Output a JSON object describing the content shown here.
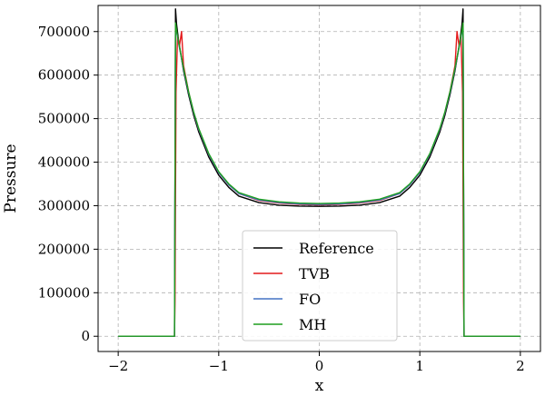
{
  "chart_data": {
    "type": "line",
    "title": "",
    "xlabel": "x",
    "ylabel": "Pressure",
    "xlim": [
      -2.2,
      2.2
    ],
    "ylim": [
      -35000,
      760000
    ],
    "xticks": [
      -2,
      -1,
      0,
      1,
      2
    ],
    "xtick_labels": [
      "−2",
      "−1",
      "0",
      "1",
      "2"
    ],
    "yticks": [
      0,
      100000,
      200000,
      300000,
      400000,
      500000,
      600000,
      700000
    ],
    "ytick_labels": [
      "0",
      "100000",
      "200000",
      "300000",
      "400000",
      "500000",
      "600000",
      "700000"
    ],
    "grid": true,
    "legend_position": "bottom-center",
    "series": [
      {
        "name": "Reference",
        "color": "#000000",
        "x": [
          -2.0,
          -1.44,
          -1.43,
          -1.42,
          -1.4,
          -1.35,
          -1.3,
          -1.25,
          -1.2,
          -1.1,
          -1.0,
          -0.9,
          -0.8,
          -0.6,
          -0.4,
          -0.2,
          0.0,
          0.2,
          0.4,
          0.6,
          0.8,
          0.9,
          1.0,
          1.1,
          1.2,
          1.25,
          1.3,
          1.35,
          1.4,
          1.42,
          1.43,
          1.44,
          2.0
        ],
        "y": [
          0,
          0,
          752000,
          718000,
          680000,
          610000,
          555000,
          508000,
          470000,
          412000,
          370000,
          342000,
          322000,
          307000,
          301000,
          299000,
          298500,
          299000,
          301000,
          307000,
          322000,
          342000,
          370000,
          412000,
          470000,
          508000,
          555000,
          610000,
          680000,
          718000,
          752000,
          0,
          0
        ]
      },
      {
        "name": "TVB",
        "color": "#e41a1c",
        "x": [
          -2.0,
          -1.44,
          -1.435,
          -1.425,
          -1.41,
          -1.39,
          -1.37,
          -1.35,
          -1.3,
          -1.25,
          -1.2,
          -1.1,
          -1.0,
          -0.9,
          -0.8,
          -0.6,
          -0.4,
          -0.2,
          0.0,
          0.2,
          0.4,
          0.6,
          0.8,
          0.9,
          1.0,
          1.1,
          1.2,
          1.25,
          1.3,
          1.35,
          1.37,
          1.39,
          1.41,
          1.425,
          1.435,
          1.44,
          2.0
        ],
        "y": [
          0,
          0,
          80000,
          560000,
          690000,
          668000,
          700000,
          622000,
          562000,
          514000,
          476000,
          418000,
          376000,
          348000,
          328000,
          312000,
          306000,
          303000,
          302000,
          303000,
          306000,
          312000,
          328000,
          348000,
          376000,
          418000,
          476000,
          514000,
          562000,
          622000,
          700000,
          668000,
          690000,
          560000,
          80000,
          0,
          0
        ]
      },
      {
        "name": "FO",
        "color": "#4472c4",
        "x": [
          -2.0,
          -1.44,
          -1.43,
          -1.42,
          -1.4,
          -1.35,
          -1.3,
          -1.25,
          -1.2,
          -1.1,
          -1.0,
          -0.9,
          -0.8,
          -0.6,
          -0.4,
          -0.2,
          0.0,
          0.2,
          0.4,
          0.6,
          0.8,
          0.9,
          1.0,
          1.1,
          1.2,
          1.25,
          1.3,
          1.35,
          1.4,
          1.42,
          1.43,
          1.44,
          2.0
        ],
        "y": [
          0,
          0,
          712000,
          700000,
          674000,
          614000,
          560000,
          514000,
          476000,
          418000,
          376000,
          348000,
          328000,
          313000,
          307000,
          304000,
          303000,
          304000,
          307000,
          313000,
          328000,
          348000,
          376000,
          418000,
          476000,
          514000,
          560000,
          614000,
          674000,
          700000,
          712000,
          0,
          0
        ]
      },
      {
        "name": "MH",
        "color": "#1f9e1f",
        "x": [
          -2.0,
          -1.44,
          -1.43,
          -1.42,
          -1.4,
          -1.35,
          -1.3,
          -1.25,
          -1.2,
          -1.1,
          -1.0,
          -0.9,
          -0.8,
          -0.6,
          -0.4,
          -0.2,
          0.0,
          0.2,
          0.4,
          0.6,
          0.8,
          0.9,
          1.0,
          1.1,
          1.2,
          1.25,
          1.3,
          1.35,
          1.4,
          1.42,
          1.43,
          1.44,
          2.0
        ],
        "y": [
          0,
          0,
          720000,
          704000,
          676000,
          616000,
          562000,
          516000,
          478000,
          420000,
          378000,
          350000,
          330000,
          315000,
          309000,
          306000,
          305000,
          306000,
          309000,
          315000,
          330000,
          350000,
          378000,
          420000,
          478000,
          516000,
          562000,
          616000,
          676000,
          704000,
          720000,
          0,
          0
        ]
      }
    ]
  }
}
